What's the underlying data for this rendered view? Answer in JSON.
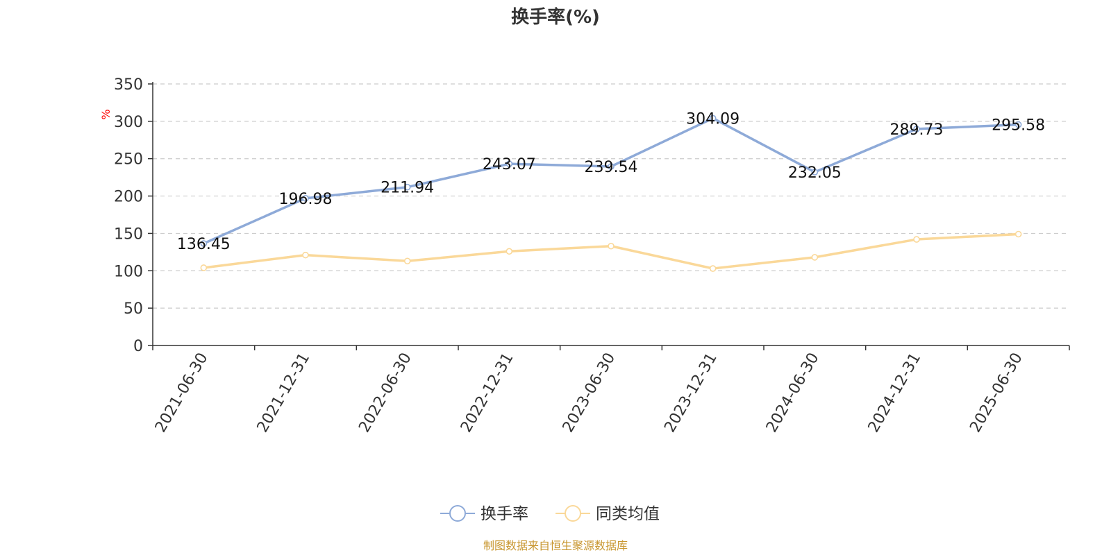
{
  "chart_data": {
    "type": "line",
    "title": "换手率(%)",
    "ylabel": "%",
    "ylim": [
      0,
      350
    ],
    "yticks": [
      0,
      50,
      100,
      150,
      200,
      250,
      300,
      350
    ],
    "grid": true,
    "legend": "bottom-center",
    "categories": [
      "2021-06-30",
      "2021-12-31",
      "2022-06-30",
      "2022-12-31",
      "2023-06-30",
      "2023-12-31",
      "2024-06-30",
      "2024-12-31",
      "2025-06-30"
    ],
    "series": [
      {
        "name": "换手率",
        "color": "#8eaad8",
        "values": [
          136.45,
          196.98,
          211.94,
          243.07,
          239.54,
          304.09,
          232.05,
          289.73,
          295.58
        ],
        "labels": [
          "136.45",
          "196.98",
          "211.94",
          "243.07",
          "239.54",
          "304.09",
          "232.05",
          "289.73",
          "295.58"
        ]
      },
      {
        "name": "同类均值",
        "color": "#fad899",
        "values": [
          104,
          121,
          113,
          126,
          133,
          103,
          118,
          142,
          149
        ]
      }
    ]
  },
  "footer": {
    "source": "制图数据来自恒生聚源数据库"
  }
}
